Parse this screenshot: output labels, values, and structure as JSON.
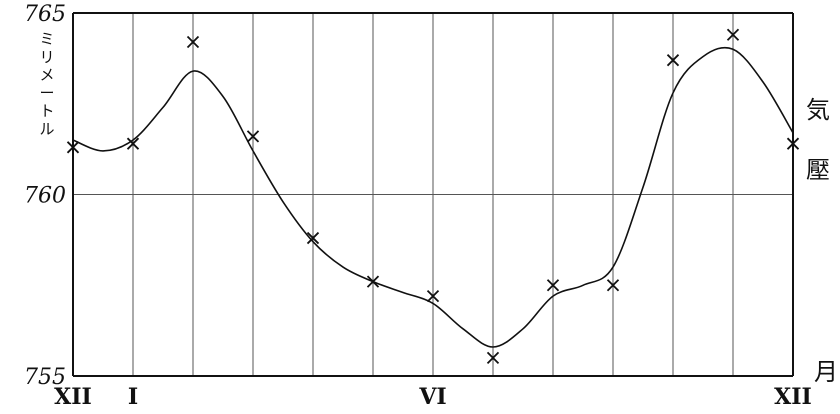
{
  "chart_data": {
    "type": "line",
    "ylabel": "気壓",
    "xlabel": "月",
    "yunit": "ミリメートル",
    "ylim": [
      755,
      765
    ],
    "yticks": [
      765,
      760,
      755
    ],
    "xtick_labels": [
      {
        "label": "XII",
        "x": 0
      },
      {
        "label": "I",
        "x": 1
      },
      {
        "label": "VI",
        "x": 6
      },
      {
        "label": "XII",
        "x": 12
      }
    ],
    "gridlines_x": [
      0,
      1,
      2,
      3,
      4,
      5,
      6,
      7,
      8,
      9,
      10,
      11,
      12
    ],
    "series": [
      {
        "observed_points": [
          {
            "x": 0,
            "y": 761.3
          },
          {
            "x": 1,
            "y": 761.4
          },
          {
            "x": 2,
            "y": 764.2
          },
          {
            "x": 3,
            "y": 761.6
          },
          {
            "x": 4,
            "y": 758.8
          },
          {
            "x": 5,
            "y": 757.6
          },
          {
            "x": 6,
            "y": 757.2
          },
          {
            "x": 7,
            "y": 755.5
          },
          {
            "x": 8,
            "y": 757.5
          },
          {
            "x": 9,
            "y": 757.5
          },
          {
            "x": 10,
            "y": 763.7
          },
          {
            "x": 11,
            "y": 764.4
          },
          {
            "x": 12,
            "y": 761.4
          }
        ],
        "smoothed_curve": [
          {
            "x": 0,
            "y": 761.5
          },
          {
            "x": 0.5,
            "y": 761.2
          },
          {
            "x": 1,
            "y": 761.5
          },
          {
            "x": 1.5,
            "y": 762.4
          },
          {
            "x": 2,
            "y": 763.4
          },
          {
            "x": 2.5,
            "y": 762.7
          },
          {
            "x": 3,
            "y": 761.2
          },
          {
            "x": 3.5,
            "y": 759.8
          },
          {
            "x": 4,
            "y": 758.7
          },
          {
            "x": 4.5,
            "y": 758.0
          },
          {
            "x": 5,
            "y": 757.6
          },
          {
            "x": 5.5,
            "y": 757.3
          },
          {
            "x": 6,
            "y": 757.0
          },
          {
            "x": 6.5,
            "y": 756.3
          },
          {
            "x": 7,
            "y": 755.8
          },
          {
            "x": 7.5,
            "y": 756.3
          },
          {
            "x": 8,
            "y": 757.2
          },
          {
            "x": 8.5,
            "y": 757.5
          },
          {
            "x": 9,
            "y": 758.0
          },
          {
            "x": 9.5,
            "y": 760.2
          },
          {
            "x": 10,
            "y": 762.8
          },
          {
            "x": 10.5,
            "y": 763.8
          },
          {
            "x": 11,
            "y": 764.0
          },
          {
            "x": 11.5,
            "y": 763.1
          },
          {
            "x": 12,
            "y": 761.7
          }
        ]
      }
    ]
  }
}
